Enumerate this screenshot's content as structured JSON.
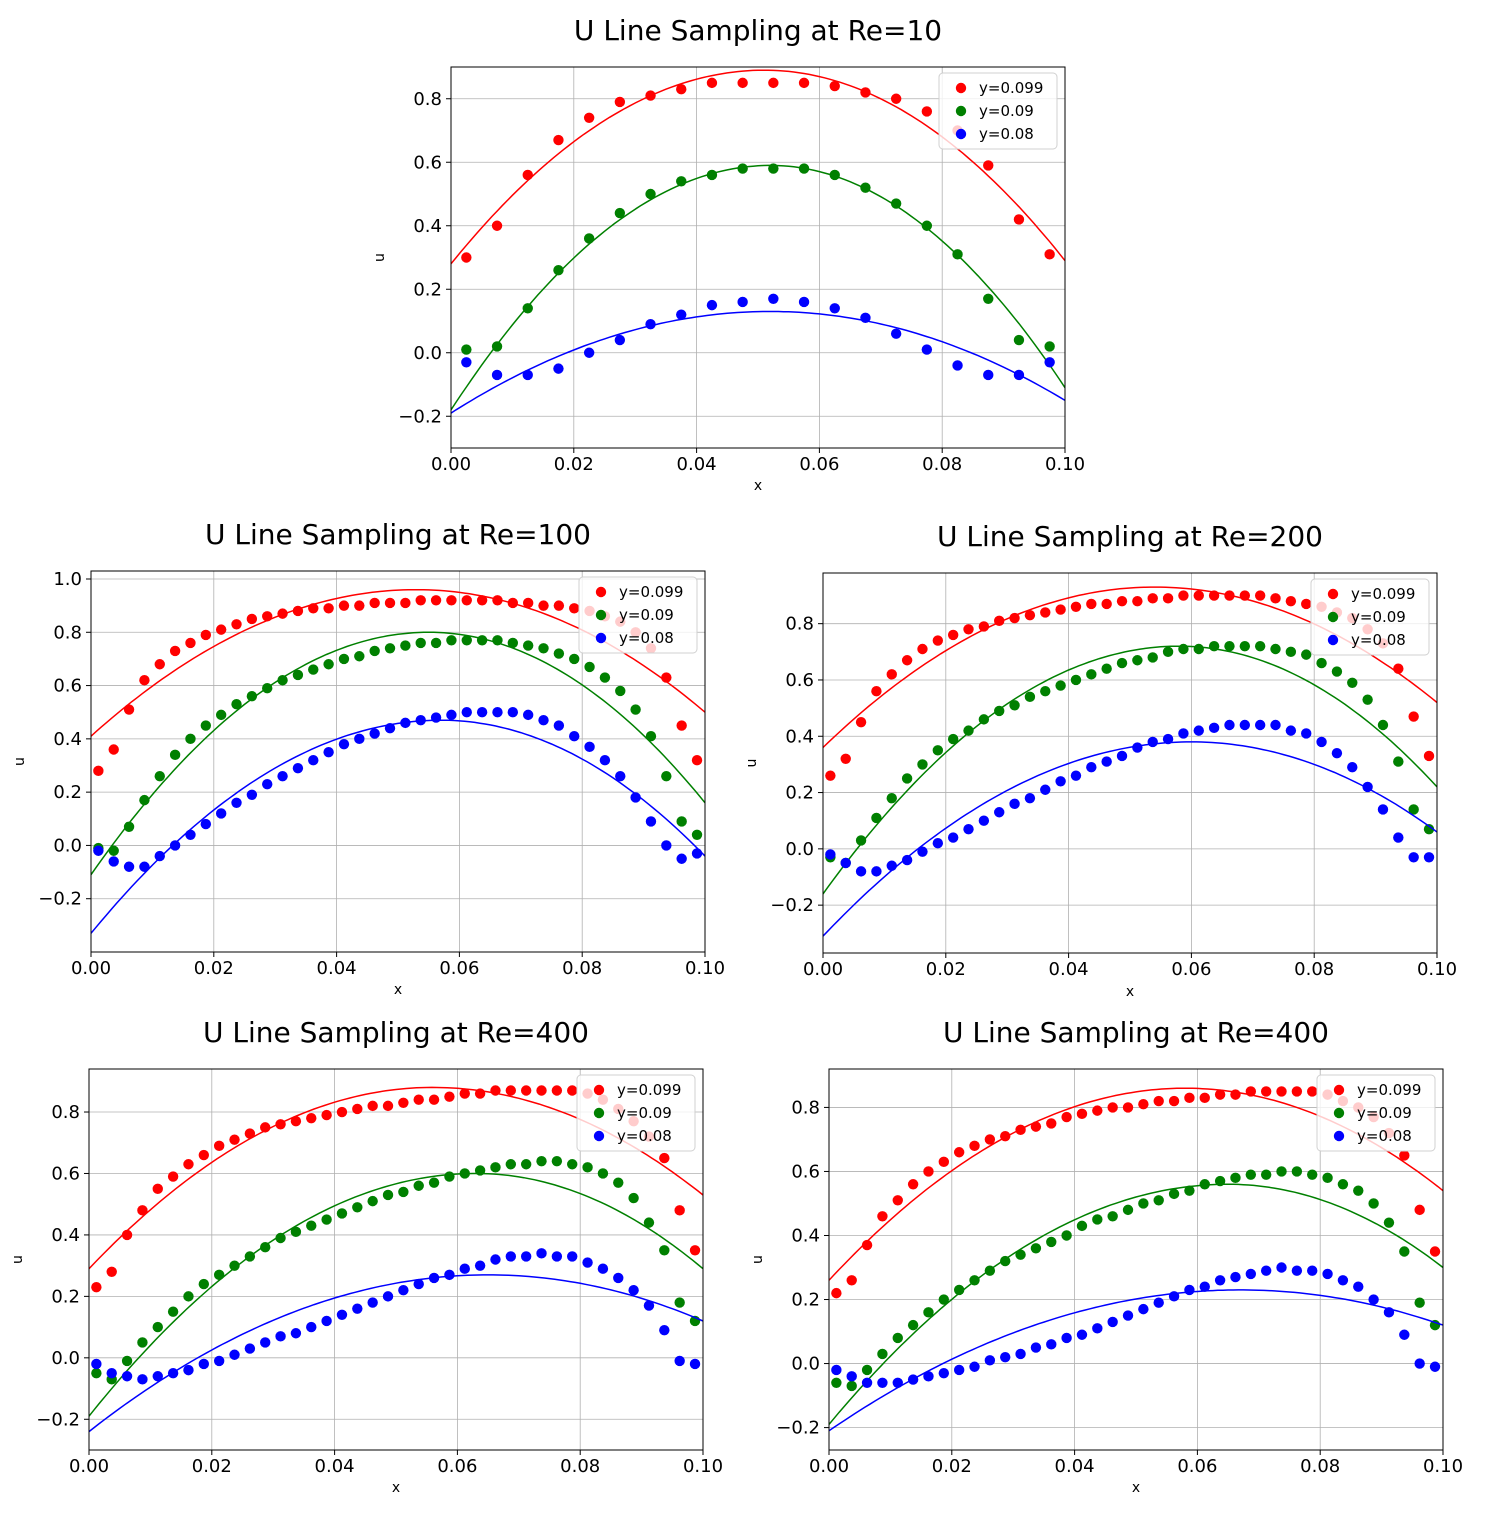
{
  "chart_data": [
    {
      "type": "scatter",
      "title": "U Line Sampling at Re=10",
      "xlabel": "x",
      "ylabel": "u",
      "xlim": [
        0.0,
        0.1
      ],
      "ylim": [
        -0.3,
        0.9
      ],
      "xticks": [
        "0.00",
        "0.02",
        "0.04",
        "0.06",
        "0.08",
        "0.10"
      ],
      "yticks": [
        "−0.2",
        "0.0",
        "0.2",
        "0.4",
        "0.6",
        "0.8"
      ],
      "grid": true,
      "legend": "top-right",
      "x": [
        0.0025,
        0.0075,
        0.0125,
        0.0175,
        0.0225,
        0.0275,
        0.0325,
        0.0375,
        0.0425,
        0.0475,
        0.0525,
        0.0575,
        0.0625,
        0.0675,
        0.0725,
        0.0775,
        0.0825,
        0.0875,
        0.0925,
        0.0975
      ],
      "series": [
        {
          "name": "y=0.099",
          "color": "#ff0000",
          "values": [
            0.3,
            0.4,
            0.56,
            0.67,
            0.74,
            0.79,
            0.81,
            0.83,
            0.85,
            0.85,
            0.85,
            0.85,
            0.84,
            0.82,
            0.8,
            0.76,
            0.7,
            0.59,
            0.42,
            0.31
          ],
          "fit": [
            0.28,
            0.0,
            0.89,
            0.051,
            0.29,
            0.1
          ]
        },
        {
          "name": "y=0.09",
          "color": "#008000",
          "values": [
            0.01,
            0.02,
            0.14,
            0.26,
            0.36,
            0.44,
            0.5,
            0.54,
            0.56,
            0.58,
            0.58,
            0.58,
            0.56,
            0.52,
            0.47,
            0.4,
            0.31,
            0.17,
            0.04,
            0.02
          ],
          "fit": [
            -0.18,
            0.0,
            0.59,
            0.052,
            -0.11,
            0.1
          ]
        },
        {
          "name": "y=0.08",
          "color": "#0000ff",
          "values": [
            -0.03,
            -0.07,
            -0.07,
            -0.05,
            0.0,
            0.04,
            0.09,
            0.12,
            0.15,
            0.16,
            0.17,
            0.16,
            0.14,
            0.11,
            0.06,
            0.01,
            -0.04,
            -0.07,
            -0.07,
            -0.03
          ],
          "fit": [
            -0.19,
            0.0,
            0.13,
            0.052,
            -0.15,
            0.1
          ]
        }
      ]
    },
    {
      "type": "scatter",
      "title": "U Line Sampling at Re=100",
      "xlabel": "x",
      "ylabel": "u",
      "xlim": [
        0.0,
        0.1
      ],
      "ylim": [
        -0.4,
        1.03
      ],
      "xticks": [
        "0.00",
        "0.02",
        "0.04",
        "0.06",
        "0.08",
        "0.10"
      ],
      "yticks": [
        "−0.2",
        "0.0",
        "0.2",
        "0.4",
        "0.6",
        "0.8",
        "1.0"
      ],
      "grid": true,
      "legend": "top-right",
      "x": [
        0.0012,
        0.0037,
        0.0062,
        0.0087,
        0.0112,
        0.0137,
        0.0162,
        0.0187,
        0.0212,
        0.0237,
        0.0262,
        0.0287,
        0.0312,
        0.0337,
        0.0362,
        0.0387,
        0.0412,
        0.0437,
        0.0462,
        0.0487,
        0.0512,
        0.0537,
        0.0562,
        0.0587,
        0.0612,
        0.0637,
        0.0662,
        0.0687,
        0.0712,
        0.0737,
        0.0762,
        0.0787,
        0.0812,
        0.0837,
        0.0862,
        0.0887,
        0.0912,
        0.0937,
        0.0962,
        0.0987
      ],
      "series": [
        {
          "name": "y=0.099",
          "color": "#ff0000",
          "values": [
            0.28,
            0.36,
            0.51,
            0.62,
            0.68,
            0.73,
            0.76,
            0.79,
            0.81,
            0.83,
            0.85,
            0.86,
            0.87,
            0.88,
            0.89,
            0.89,
            0.9,
            0.9,
            0.91,
            0.91,
            0.91,
            0.92,
            0.92,
            0.92,
            0.92,
            0.92,
            0.92,
            0.91,
            0.91,
            0.9,
            0.9,
            0.89,
            0.88,
            0.86,
            0.84,
            0.8,
            0.74,
            0.63,
            0.45,
            0.32
          ],
          "fit": [
            0.41,
            0.0,
            0.96,
            0.053,
            0.5,
            0.1
          ]
        },
        {
          "name": "y=0.09",
          "color": "#008000",
          "values": [
            -0.01,
            -0.02,
            0.07,
            0.17,
            0.26,
            0.34,
            0.4,
            0.45,
            0.49,
            0.53,
            0.56,
            0.59,
            0.62,
            0.64,
            0.66,
            0.68,
            0.7,
            0.71,
            0.73,
            0.74,
            0.75,
            0.76,
            0.76,
            0.77,
            0.77,
            0.77,
            0.77,
            0.76,
            0.75,
            0.74,
            0.72,
            0.7,
            0.67,
            0.63,
            0.58,
            0.51,
            0.41,
            0.26,
            0.09,
            0.04
          ],
          "fit": [
            -0.11,
            0.0,
            0.8,
            0.055,
            0.16,
            0.1
          ]
        },
        {
          "name": "y=0.08",
          "color": "#0000ff",
          "values": [
            -0.02,
            -0.06,
            -0.08,
            -0.08,
            -0.04,
            0.0,
            0.04,
            0.08,
            0.12,
            0.16,
            0.19,
            0.23,
            0.26,
            0.29,
            0.32,
            0.35,
            0.38,
            0.4,
            0.42,
            0.44,
            0.46,
            0.47,
            0.48,
            0.49,
            0.5,
            0.5,
            0.5,
            0.5,
            0.49,
            0.47,
            0.45,
            0.41,
            0.37,
            0.32,
            0.26,
            0.18,
            0.09,
            0.0,
            -0.05,
            -0.03
          ],
          "fit": [
            -0.33,
            0.0,
            0.47,
            0.057,
            -0.04,
            0.1
          ]
        }
      ]
    },
    {
      "type": "scatter",
      "title": "U Line Sampling at Re=200",
      "xlabel": "x",
      "ylabel": "u",
      "xlim": [
        0.0,
        0.1
      ],
      "ylim": [
        -0.37,
        0.98
      ],
      "xticks": [
        "0.00",
        "0.02",
        "0.04",
        "0.06",
        "0.08",
        "0.10"
      ],
      "yticks": [
        "−0.2",
        "0.0",
        "0.2",
        "0.4",
        "0.6",
        "0.8"
      ],
      "grid": true,
      "legend": "top-right",
      "x": [
        0.0012,
        0.0037,
        0.0062,
        0.0087,
        0.0112,
        0.0137,
        0.0162,
        0.0187,
        0.0212,
        0.0237,
        0.0262,
        0.0287,
        0.0312,
        0.0337,
        0.0362,
        0.0387,
        0.0412,
        0.0437,
        0.0462,
        0.0487,
        0.0512,
        0.0537,
        0.0562,
        0.0587,
        0.0612,
        0.0637,
        0.0662,
        0.0687,
        0.0712,
        0.0737,
        0.0762,
        0.0787,
        0.0812,
        0.0837,
        0.0862,
        0.0887,
        0.0912,
        0.0937,
        0.0962,
        0.0987
      ],
      "series": [
        {
          "name": "y=0.099",
          "color": "#ff0000",
          "values": [
            0.26,
            0.32,
            0.45,
            0.56,
            0.62,
            0.67,
            0.71,
            0.74,
            0.76,
            0.78,
            0.79,
            0.81,
            0.82,
            0.83,
            0.84,
            0.85,
            0.86,
            0.87,
            0.87,
            0.88,
            0.88,
            0.89,
            0.89,
            0.9,
            0.9,
            0.9,
            0.9,
            0.9,
            0.9,
            0.89,
            0.88,
            0.87,
            0.86,
            0.84,
            0.82,
            0.78,
            0.73,
            0.64,
            0.47,
            0.33
          ],
          "fit": [
            0.36,
            0.0,
            0.93,
            0.054,
            0.52,
            0.1
          ]
        },
        {
          "name": "y=0.09",
          "color": "#008000",
          "values": [
            -0.03,
            -0.05,
            0.03,
            0.11,
            0.18,
            0.25,
            0.3,
            0.35,
            0.39,
            0.42,
            0.46,
            0.49,
            0.51,
            0.54,
            0.56,
            0.58,
            0.6,
            0.62,
            0.64,
            0.66,
            0.67,
            0.68,
            0.7,
            0.71,
            0.71,
            0.72,
            0.72,
            0.72,
            0.72,
            0.71,
            0.7,
            0.69,
            0.66,
            0.63,
            0.59,
            0.53,
            0.44,
            0.31,
            0.14,
            0.07
          ],
          "fit": [
            -0.16,
            0.0,
            0.72,
            0.058,
            0.22,
            0.1
          ]
        },
        {
          "name": "y=0.08",
          "color": "#0000ff",
          "values": [
            -0.02,
            -0.05,
            -0.08,
            -0.08,
            -0.06,
            -0.04,
            -0.01,
            0.02,
            0.04,
            0.07,
            0.1,
            0.13,
            0.16,
            0.18,
            0.21,
            0.24,
            0.26,
            0.29,
            0.31,
            0.33,
            0.36,
            0.38,
            0.39,
            0.41,
            0.42,
            0.43,
            0.44,
            0.44,
            0.44,
            0.44,
            0.42,
            0.41,
            0.38,
            0.34,
            0.29,
            0.22,
            0.14,
            0.04,
            -0.03,
            -0.03
          ],
          "fit": [
            -0.31,
            0.0,
            0.38,
            0.06,
            0.06,
            0.1
          ]
        }
      ]
    },
    {
      "type": "scatter",
      "title": "U Line Sampling at Re=400",
      "xlabel": "x",
      "ylabel": "u",
      "xlim": [
        0.0,
        0.1
      ],
      "ylim": [
        -0.3,
        0.94
      ],
      "xticks": [
        "0.00",
        "0.02",
        "0.04",
        "0.06",
        "0.08",
        "0.10"
      ],
      "yticks": [
        "−0.2",
        "0.0",
        "0.2",
        "0.4",
        "0.6",
        "0.8"
      ],
      "grid": true,
      "legend": "top-right",
      "x": [
        0.0012,
        0.0037,
        0.0062,
        0.0087,
        0.0112,
        0.0137,
        0.0162,
        0.0187,
        0.0212,
        0.0237,
        0.0262,
        0.0287,
        0.0312,
        0.0337,
        0.0362,
        0.0387,
        0.0412,
        0.0437,
        0.0462,
        0.0487,
        0.0512,
        0.0537,
        0.0562,
        0.0587,
        0.0612,
        0.0637,
        0.0662,
        0.0687,
        0.0712,
        0.0737,
        0.0762,
        0.0787,
        0.0812,
        0.0837,
        0.0862,
        0.0887,
        0.0912,
        0.0937,
        0.0962,
        0.0987
      ],
      "series": [
        {
          "name": "y=0.099",
          "color": "#ff0000",
          "values": [
            0.23,
            0.28,
            0.4,
            0.48,
            0.55,
            0.59,
            0.63,
            0.66,
            0.69,
            0.71,
            0.73,
            0.75,
            0.76,
            0.77,
            0.78,
            0.79,
            0.8,
            0.81,
            0.82,
            0.82,
            0.83,
            0.84,
            0.84,
            0.85,
            0.86,
            0.86,
            0.87,
            0.87,
            0.87,
            0.87,
            0.87,
            0.87,
            0.86,
            0.84,
            0.81,
            0.77,
            0.72,
            0.65,
            0.48,
            0.35
          ],
          "fit": [
            0.29,
            0.0,
            0.88,
            0.056,
            0.53,
            0.1
          ]
        },
        {
          "name": "y=0.09",
          "color": "#008000",
          "values": [
            -0.05,
            -0.07,
            -0.01,
            0.05,
            0.1,
            0.15,
            0.2,
            0.24,
            0.27,
            0.3,
            0.33,
            0.36,
            0.39,
            0.41,
            0.43,
            0.45,
            0.47,
            0.49,
            0.51,
            0.53,
            0.54,
            0.56,
            0.57,
            0.59,
            0.6,
            0.61,
            0.62,
            0.63,
            0.63,
            0.64,
            0.64,
            0.63,
            0.62,
            0.6,
            0.57,
            0.52,
            0.44,
            0.35,
            0.18,
            0.12
          ],
          "fit": [
            -0.19,
            0.0,
            0.6,
            0.063,
            0.29,
            0.1
          ]
        },
        {
          "name": "y=0.08",
          "color": "#0000ff",
          "values": [
            -0.02,
            -0.05,
            -0.06,
            -0.07,
            -0.06,
            -0.05,
            -0.04,
            -0.02,
            -0.01,
            0.01,
            0.03,
            0.05,
            0.07,
            0.08,
            0.1,
            0.12,
            0.14,
            0.16,
            0.18,
            0.2,
            0.22,
            0.24,
            0.26,
            0.27,
            0.29,
            0.3,
            0.32,
            0.33,
            0.33,
            0.34,
            0.33,
            0.33,
            0.31,
            0.29,
            0.26,
            0.22,
            0.17,
            0.09,
            -0.01,
            -0.02
          ],
          "fit": [
            -0.24,
            0.0,
            0.27,
            0.065,
            0.12,
            0.1
          ]
        }
      ]
    },
    {
      "type": "scatter",
      "title": "U Line Sampling at Re=400",
      "xlabel": "x",
      "ylabel": "u",
      "xlim": [
        0.0,
        0.1
      ],
      "ylim": [
        -0.27,
        0.92
      ],
      "xticks": [
        "0.00",
        "0.02",
        "0.04",
        "0.06",
        "0.08",
        "0.10"
      ],
      "yticks": [
        "−0.2",
        "0.0",
        "0.2",
        "0.4",
        "0.6",
        "0.8"
      ],
      "grid": true,
      "legend": "top-right",
      "x": [
        0.0012,
        0.0037,
        0.0062,
        0.0087,
        0.0112,
        0.0137,
        0.0162,
        0.0187,
        0.0212,
        0.0237,
        0.0262,
        0.0287,
        0.0312,
        0.0337,
        0.0362,
        0.0387,
        0.0412,
        0.0437,
        0.0462,
        0.0487,
        0.0512,
        0.0537,
        0.0562,
        0.0587,
        0.0612,
        0.0637,
        0.0662,
        0.0687,
        0.0712,
        0.0737,
        0.0762,
        0.0787,
        0.0812,
        0.0837,
        0.0862,
        0.0887,
        0.0912,
        0.0937,
        0.0962,
        0.0987
      ],
      "series": [
        {
          "name": "y=0.099",
          "color": "#ff0000",
          "values": [
            0.22,
            0.26,
            0.37,
            0.46,
            0.51,
            0.56,
            0.6,
            0.63,
            0.66,
            0.68,
            0.7,
            0.71,
            0.73,
            0.74,
            0.75,
            0.77,
            0.78,
            0.79,
            0.8,
            0.8,
            0.81,
            0.82,
            0.82,
            0.83,
            0.83,
            0.84,
            0.84,
            0.85,
            0.85,
            0.85,
            0.85,
            0.85,
            0.84,
            0.82,
            0.8,
            0.77,
            0.72,
            0.65,
            0.48,
            0.35
          ],
          "fit": [
            0.26,
            0.0,
            0.86,
            0.058,
            0.54,
            0.1
          ]
        },
        {
          "name": "y=0.09",
          "color": "#008000",
          "values": [
            -0.06,
            -0.07,
            -0.02,
            0.03,
            0.08,
            0.12,
            0.16,
            0.2,
            0.23,
            0.26,
            0.29,
            0.32,
            0.34,
            0.36,
            0.38,
            0.4,
            0.43,
            0.45,
            0.46,
            0.48,
            0.5,
            0.51,
            0.53,
            0.54,
            0.56,
            0.57,
            0.58,
            0.59,
            0.59,
            0.6,
            0.6,
            0.59,
            0.58,
            0.56,
            0.54,
            0.5,
            0.44,
            0.35,
            0.19,
            0.12
          ],
          "fit": [
            -0.19,
            0.0,
            0.56,
            0.065,
            0.3,
            0.1
          ]
        },
        {
          "name": "y=0.08",
          "color": "#0000ff",
          "values": [
            -0.02,
            -0.04,
            -0.06,
            -0.06,
            -0.06,
            -0.05,
            -0.04,
            -0.03,
            -0.02,
            -0.01,
            0.01,
            0.02,
            0.03,
            0.05,
            0.06,
            0.08,
            0.09,
            0.11,
            0.13,
            0.15,
            0.17,
            0.19,
            0.21,
            0.23,
            0.24,
            0.26,
            0.27,
            0.28,
            0.29,
            0.3,
            0.29,
            0.29,
            0.28,
            0.26,
            0.24,
            0.2,
            0.16,
            0.09,
            0.0,
            -0.01
          ],
          "fit": [
            -0.21,
            0.0,
            0.23,
            0.067,
            0.12,
            0.1
          ]
        }
      ]
    }
  ]
}
